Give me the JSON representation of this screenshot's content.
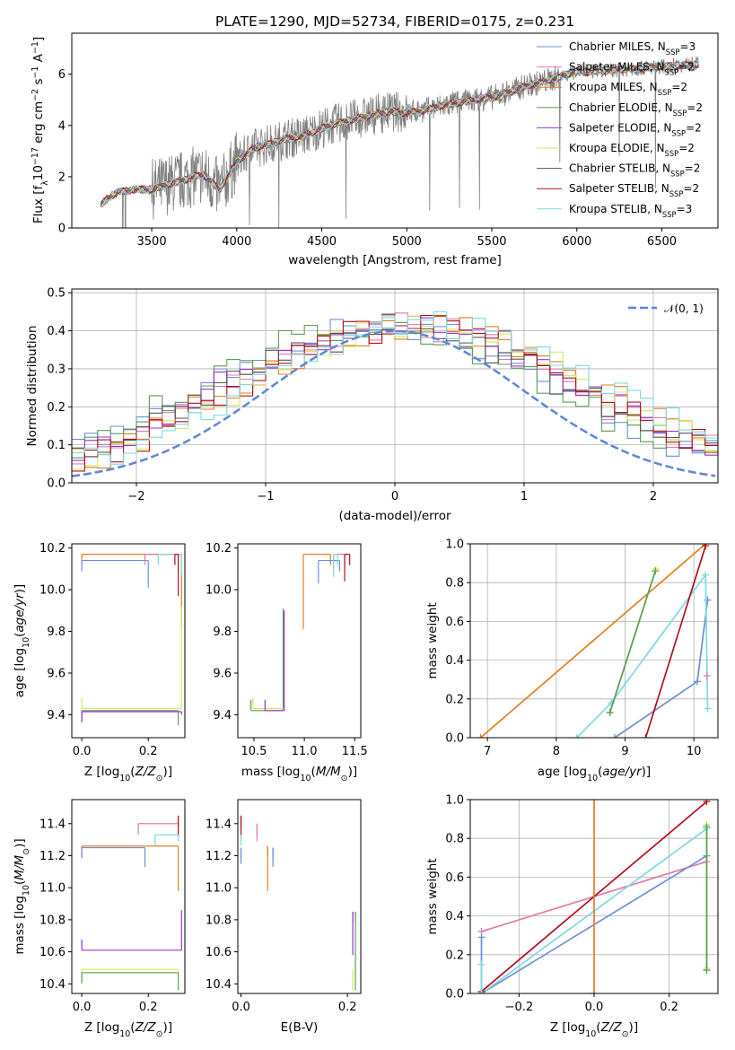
{
  "title": "PLATE=1290, MJD=52734, FIBERID=0175, z=0.231",
  "colors": {
    "Chabrier MILES": "#6e8fd6",
    "Salpeter MILES": "#e07ba8",
    "Kroupa MILES": "#e07f22",
    "Chabrier ELODIE": "#5a9c5a",
    "Salpeter ELODIE": "#9a36c9",
    "Kroupa ELODIE": "#d8e85a",
    "Chabrier STELIB": "#555555",
    "Salpeter STELIB": "#b01020",
    "Kroupa STELIB": "#7fd8e0",
    "gaussian": "#5b86d8",
    "data": "#7f7f7f"
  },
  "chart_data": [
    {
      "id": "spectrum",
      "type": "line",
      "xlabel": "wavelength [Angstrom, rest frame]",
      "ylabel": "Flux [fλ10⁻¹⁷ erg cm⁻² s⁻¹ A⁻¹]",
      "xlim": [
        3030,
        6830
      ],
      "ylim": [
        0,
        7.6
      ],
      "xticks": [
        3500,
        4000,
        4500,
        5000,
        5500,
        6000,
        6500
      ],
      "yticks": [
        0,
        2,
        4,
        6
      ],
      "legend_position": "top-right",
      "continuum_x": [
        3200,
        3250,
        3300,
        3400,
        3500,
        3600,
        3700,
        3800,
        3900,
        4000,
        4100,
        4200,
        4300,
        4400,
        4500,
        4600,
        4700,
        4800,
        4900,
        5000,
        5100,
        5200,
        5300,
        5400,
        5500,
        5600,
        5700,
        5800,
        5900,
        6000,
        6100,
        6200,
        6300,
        6400,
        6500,
        6600,
        6700
      ],
      "continuum_y": [
        0.9,
        1.2,
        1.4,
        1.5,
        1.5,
        1.7,
        1.9,
        2.1,
        1.5,
        2.6,
        3.1,
        3.3,
        3.5,
        3.6,
        3.9,
        4.1,
        4.25,
        4.4,
        4.55,
        4.5,
        4.6,
        4.75,
        4.9,
        5.0,
        5.1,
        5.3,
        5.55,
        5.7,
        5.9,
        6.1,
        6.1,
        6.15,
        6.2,
        6.25,
        6.3,
        6.35,
        6.4
      ],
      "legend": [
        {
          "name": "Chabrier MILES, N_SSP=3",
          "label": "Chabrier MILES, N",
          "n": "=3"
        },
        {
          "name": "Salpeter MILES, N_SSP=2",
          "label": "Salpeter MILES, N",
          "n": "=2"
        },
        {
          "name": "Kroupa MILES, N_SSP=2",
          "label": "Kroupa MILES, N",
          "n": "=2"
        },
        {
          "name": "Chabrier ELODIE, N_SSP=2",
          "label": "Chabrier ELODIE, N",
          "n": "=2"
        },
        {
          "name": "Salpeter ELODIE, N_SSP=2",
          "label": "Salpeter ELODIE, N",
          "n": "=2"
        },
        {
          "name": "Kroupa ELODIE, N_SSP=2",
          "label": "Kroupa ELODIE, N",
          "n": "=2"
        },
        {
          "name": "Chabrier STELIB, N_SSP=2",
          "label": "Chabrier STELIB, N",
          "n": "=2"
        },
        {
          "name": "Salpeter STELIB, N_SSP=2",
          "label": "Salpeter STELIB, N",
          "n": "=2"
        },
        {
          "name": "Kroupa STELIB, N_SSP=3",
          "label": "Kroupa STELIB, N",
          "n": "=3"
        }
      ],
      "legend_sub": "SSP"
    },
    {
      "id": "residuals",
      "type": "line",
      "xlabel": "(data-model)/error",
      "ylabel": "Normed distribution",
      "xlim": [
        -2.5,
        2.5
      ],
      "ylim": [
        0,
        0.51
      ],
      "xticks": [
        -2,
        -1,
        0,
        1,
        2
      ],
      "yticks": [
        0.0,
        0.1,
        0.2,
        0.3,
        0.4,
        0.5
      ],
      "grid": true,
      "legend_position": "top-right",
      "legend_label": "𝒩(0, 1)",
      "hist_envelope": [
        0.03,
        0.03,
        0.04,
        0.05,
        0.05,
        0.06,
        0.07,
        0.09,
        0.11,
        0.14,
        0.17,
        0.2,
        0.23,
        0.26,
        0.29,
        0.32,
        0.35,
        0.37,
        0.39,
        0.4,
        0.41,
        0.42,
        0.41,
        0.4,
        0.39,
        0.37,
        0.34,
        0.32,
        0.29,
        0.26,
        0.23,
        0.2,
        0.17,
        0.14,
        0.12,
        0.1,
        0.08,
        0.07,
        0.06,
        0.05,
        0.04,
        0.04,
        0.03
      ]
    },
    {
      "id": "age-vs-Z",
      "type": "scatter",
      "xlabel": "Z [log10(Z/Z⊙)]",
      "ylabel": "age  [log10(age/yr)]",
      "xlim": [
        -0.03,
        0.31
      ],
      "ylim": [
        9.29,
        10.22
      ],
      "xticks": [
        0.0,
        0.2
      ],
      "yticks": [
        9.4,
        9.6,
        9.8,
        10.0,
        10.2
      ],
      "points": [
        {
          "series": "Kroupa MILES",
          "x": 0.0,
          "y": 10.17,
          "x_end": 0.3,
          "y_low": 9.82
        },
        {
          "series": "Salpeter MILES",
          "x": 0.19,
          "y": 10.17,
          "x_end": 0.29,
          "y_low": 10.09
        },
        {
          "series": "Chabrier MILES",
          "x": 0.0,
          "y": 10.14,
          "x_end": 0.2,
          "y_low": 10.01
        },
        {
          "series": "Kroupa STELIB",
          "x": 0.23,
          "y": 10.17,
          "x_end": 0.3,
          "y_low": 10.07
        },
        {
          "series": "Salpeter STELIB",
          "x": 0.28,
          "y": 10.17,
          "x_end": 0.29,
          "y_low": 9.97
        },
        {
          "series": "Kroupa ELODIE",
          "x": 0.0,
          "y": 9.43,
          "x_end": 0.3,
          "y_low": 9.92
        },
        {
          "series": "Chabrier ELODIE",
          "x": 0.0,
          "y": 9.42,
          "x_end": 0.29,
          "y_low": 9.35
        },
        {
          "series": "Salpeter ELODIE",
          "x": 0.0,
          "y": 9.415,
          "x_end": 0.3,
          "y_low": 9.4
        }
      ]
    },
    {
      "id": "age-vs-mass",
      "type": "scatter",
      "xlabel": "mass [log10(M/M⊙)]",
      "ylabel": "",
      "xlim": [
        10.34,
        11.56
      ],
      "ylim": [
        9.29,
        10.22
      ],
      "xticks": [
        10.5,
        11.0,
        11.5
      ],
      "yticks": [
        9.4,
        9.6,
        9.8,
        10.0,
        10.2
      ],
      "points": [
        {
          "series": "Kroupa MILES",
          "x": 11.26,
          "y": 10.17,
          "x_end": 10.99,
          "y_low": 9.81
        },
        {
          "series": "Chabrier MILES",
          "x": 11.35,
          "y": 10.14,
          "x_end": 11.14,
          "y_low": 10.03
        },
        {
          "series": "Salpeter MILES",
          "x": 11.4,
          "y": 10.17,
          "x_end": 11.29,
          "y_low": 10.1
        },
        {
          "series": "Salpeter STELIB",
          "x": 11.45,
          "y": 10.17,
          "x_end": 11.4,
          "y_low": 10.04
        },
        {
          "series": "Kroupa STELIB",
          "x": 11.33,
          "y": 10.17,
          "x_end": 11.29,
          "y_low": 10.06
        },
        {
          "series": "Chabrier ELODIE",
          "x": 10.47,
          "y": 9.42,
          "x_end": 10.79,
          "y_low": 9.91
        },
        {
          "series": "Kroupa ELODIE",
          "x": 10.49,
          "y": 9.43,
          "x_end": 10.8,
          "y_low": 9.9
        },
        {
          "series": "Salpeter ELODIE",
          "x": 10.61,
          "y": 9.42,
          "x_end": 10.8,
          "y_low": 9.9
        }
      ]
    },
    {
      "id": "mass-weight-vs-age",
      "type": "line",
      "xlabel": "age  [log10(age/yr)]",
      "ylabel": "mass weight",
      "xlim": [
        6.75,
        10.35
      ],
      "ylim": [
        0,
        1.0
      ],
      "xticks": [
        7,
        8,
        9,
        10
      ],
      "yticks": [
        0.0,
        0.2,
        0.4,
        0.6,
        0.8,
        1.0
      ],
      "grid": true,
      "series": [
        {
          "name": "Kroupa MILES",
          "x": [
            6.9,
            10.17
          ],
          "y": [
            0.0,
            1.0
          ]
        },
        {
          "name": "Chabrier MILES",
          "x": [
            8.85,
            10.05,
            10.2
          ],
          "y": [
            0.0,
            0.29,
            0.71
          ]
        },
        {
          "name": "Kroupa STELIB",
          "x": [
            8.3,
            8.8,
            10.17,
            10.2
          ],
          "y": [
            0.0,
            0.18,
            0.84,
            0.15
          ]
        },
        {
          "name": "Salpeter STELIB",
          "x": [
            9.3,
            10.17
          ],
          "y": [
            0.0,
            0.99
          ]
        },
        {
          "name": "Kroupa ELODIE",
          "x": [
            8.78,
            9.45
          ],
          "y": [
            0.13,
            0.87
          ]
        },
        {
          "name": "Chabrier ELODIE",
          "x": [
            8.78,
            9.44
          ],
          "y": [
            0.13,
            0.86
          ]
        },
        {
          "name": "Salpeter MILES",
          "x": [
            10.19
          ],
          "y": [
            0.32
          ]
        }
      ]
    },
    {
      "id": "mass-vs-Z",
      "type": "scatter",
      "xlabel": "Z [log10(Z/Z⊙)]",
      "ylabel": "mass [log10(M/M⊙)]",
      "xlim": [
        -0.03,
        0.31
      ],
      "ylim": [
        10.34,
        11.55
      ],
      "xticks": [
        0.0,
        0.2
      ],
      "yticks": [
        10.4,
        10.6,
        10.8,
        11.0,
        11.2,
        11.4
      ],
      "points": [
        {
          "series": "Salpeter MILES",
          "x": 0.17,
          "y": 11.4,
          "x_end": 0.29,
          "y_low": 11.29
        },
        {
          "series": "Salpeter STELIB",
          "x": 0.29,
          "y": 11.45,
          "x_end": 0.29,
          "y_low": 11.33
        },
        {
          "series": "Kroupa STELIB",
          "x": 0.22,
          "y": 11.33,
          "x_end": 0.29,
          "y_low": 11.29
        },
        {
          "series": "Kroupa MILES",
          "x": 0.0,
          "y": 11.26,
          "x_end": 0.29,
          "y_low": 10.98
        },
        {
          "series": "Chabrier MILES",
          "x": 0.0,
          "y": 11.25,
          "x_end": 0.19,
          "y_low": 11.13
        },
        {
          "series": "Salpeter ELODIE",
          "x": 0.0,
          "y": 10.61,
          "x_end": 0.3,
          "y_low": 10.86
        },
        {
          "series": "Kroupa ELODIE",
          "x": 0.0,
          "y": 10.49,
          "x_end": 0.29,
          "y_low": 10.36
        },
        {
          "series": "Chabrier ELODIE",
          "x": 0.0,
          "y": 10.47,
          "x_end": 0.29,
          "y_low": 10.36
        }
      ]
    },
    {
      "id": "mass-vs-EBV",
      "type": "scatter",
      "xlabel": "E(B-V)",
      "ylabel": "",
      "xlim": [
        -0.006,
        0.225
      ],
      "ylim": [
        10.34,
        11.55
      ],
      "xticks": [
        0.0,
        0.2
      ],
      "yticks": [
        10.4,
        10.6,
        10.8,
        11.0,
        11.2,
        11.4
      ],
      "points": [
        {
          "series": "Salpeter STELIB",
          "x": 0.0,
          "y": 11.45,
          "y_low": 11.31
        },
        {
          "series": "Kroupa STELIB",
          "x": 0.0,
          "y": 11.33,
          "y_low": 11.29
        },
        {
          "series": "Chabrier MILES",
          "x": 0.0,
          "y": 11.25,
          "y_low": 11.15
        },
        {
          "series": "Salpeter MILES",
          "x": 0.03,
          "y": 11.4,
          "y_low": 11.29
        },
        {
          "series": "Kroupa MILES",
          "x": 0.05,
          "y": 11.26,
          "y_low": 10.98
        },
        {
          "series": "Chabrier MILES",
          "x": 0.06,
          "y": 11.25,
          "y_low": 11.13
        },
        {
          "series": "Salpeter ELODIE",
          "x": 0.21,
          "y": 10.85,
          "y_low": 10.58
        },
        {
          "series": "Kroupa ELODIE",
          "x": 0.21,
          "y": 10.49,
          "y_low": 10.36
        },
        {
          "series": "Chabrier ELODIE",
          "x": 0.215,
          "y": 10.85,
          "y_low": 10.36
        }
      ]
    },
    {
      "id": "mass-weight-vs-Z",
      "type": "line",
      "xlabel": "Z [log10(Z/Z⊙)]",
      "ylabel": "mass weight",
      "xlim": [
        -0.33,
        0.33
      ],
      "ylim": [
        0,
        1.0
      ],
      "xticks": [
        -0.2,
        0.0,
        0.2
      ],
      "yticks": [
        0.0,
        0.2,
        0.4,
        0.6,
        0.8,
        1.0
      ],
      "grid": true,
      "series": [
        {
          "name": "Salpeter MILES",
          "x": [
            -0.3,
            0.3
          ],
          "y": [
            0.32,
            0.68
          ]
        },
        {
          "name": "Chabrier MILES",
          "x": [
            -0.3,
            0.3
          ],
          "y": [
            0.0,
            0.71
          ]
        },
        {
          "name": "Kroupa STELIB",
          "x": [
            -0.3,
            0.3
          ],
          "y": [
            0.0,
            0.85
          ]
        },
        {
          "name": "Salpeter STELIB",
          "x": [
            -0.3,
            0.3
          ],
          "y": [
            0.01,
            0.99
          ]
        },
        {
          "name": "Kroupa MILES",
          "x": [
            0.0,
            0.0
          ],
          "y": [
            0.0,
            1.0
          ]
        },
        {
          "name": "Kroupa ELODIE",
          "x": [
            0.3,
            0.3
          ],
          "y": [
            0.13,
            0.87
          ]
        },
        {
          "name": "Chabrier ELODIE",
          "x": [
            0.3,
            0.3
          ],
          "y": [
            0.12,
            0.86
          ]
        },
        {
          "name": "Chabrier MILES",
          "x": [
            -0.3,
            -0.3
          ],
          "y": [
            0.0,
            0.29
          ]
        },
        {
          "name": "Kroupa STELIB",
          "x": [
            -0.3,
            -0.3
          ],
          "y": [
            0.0,
            0.15
          ]
        }
      ]
    }
  ]
}
